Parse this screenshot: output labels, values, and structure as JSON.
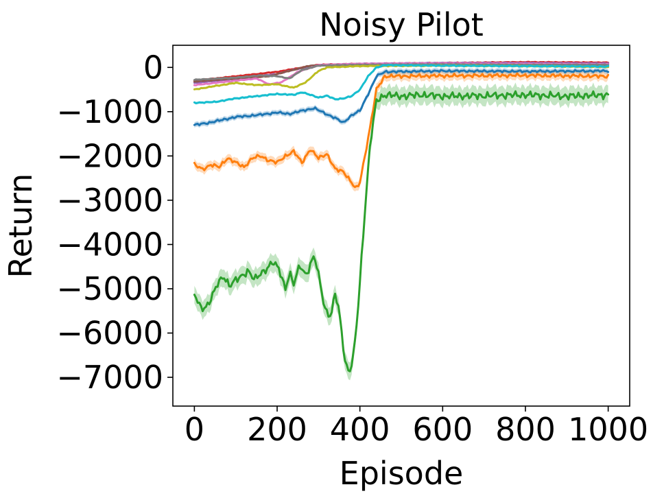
{
  "chart_data": {
    "type": "line",
    "title": "Noisy Pilot",
    "xlabel": "Episode",
    "ylabel": "Return",
    "xlim": [
      -52,
      1052
    ],
    "ylim": [
      -7650,
      500
    ],
    "xticks": [
      0,
      200,
      400,
      600,
      800,
      1000
    ],
    "xtick_labels": [
      "0",
      "200",
      "400",
      "600",
      "800",
      "1000"
    ],
    "yticks": [
      0,
      -1000,
      -2000,
      -3000,
      -4000,
      -5000,
      -6000,
      -7000
    ],
    "ytick_labels": [
      "0",
      "−1000",
      "−2000",
      "−3000",
      "−4000",
      "−5000",
      "−6000",
      "−7000"
    ],
    "grid": false,
    "legend": "none",
    "series": [
      {
        "color": "#1f77b4",
        "band": 60,
        "points": [
          [
            0,
            -1300
          ],
          [
            30,
            -1260
          ],
          [
            60,
            -1200
          ],
          [
            100,
            -1120
          ],
          [
            150,
            -1080
          ],
          [
            200,
            -1020
          ],
          [
            230,
            -1050
          ],
          [
            260,
            -980
          ],
          [
            290,
            -920
          ],
          [
            320,
            -1060
          ],
          [
            340,
            -1140
          ],
          [
            360,
            -1250
          ],
          [
            380,
            -1080
          ],
          [
            400,
            -980
          ],
          [
            420,
            -600
          ],
          [
            440,
            -200
          ],
          [
            460,
            -100
          ],
          [
            600,
            -80
          ],
          [
            800,
            -90
          ],
          [
            1000,
            -80
          ]
        ]
      },
      {
        "color": "#ff7f0e",
        "band": 100,
        "points": [
          [
            0,
            -2200
          ],
          [
            20,
            -2300
          ],
          [
            40,
            -2200
          ],
          [
            60,
            -2250
          ],
          [
            80,
            -2050
          ],
          [
            100,
            -2150
          ],
          [
            120,
            -2250
          ],
          [
            140,
            -2050
          ],
          [
            160,
            -2000
          ],
          [
            180,
            -2100
          ],
          [
            200,
            -2150
          ],
          [
            220,
            -2000
          ],
          [
            240,
            -1900
          ],
          [
            260,
            -2150
          ],
          [
            280,
            -1850
          ],
          [
            300,
            -2050
          ],
          [
            320,
            -1950
          ],
          [
            340,
            -2300
          ],
          [
            360,
            -2350
          ],
          [
            380,
            -2600
          ],
          [
            390,
            -2750
          ],
          [
            400,
            -2600
          ],
          [
            420,
            -1600
          ],
          [
            440,
            -500
          ],
          [
            460,
            -200
          ],
          [
            600,
            -190
          ],
          [
            800,
            -180
          ],
          [
            1000,
            -200
          ]
        ]
      },
      {
        "color": "#2ca02c",
        "band": 200,
        "points": [
          [
            0,
            -5100
          ],
          [
            10,
            -5350
          ],
          [
            25,
            -5450
          ],
          [
            40,
            -5250
          ],
          [
            55,
            -4900
          ],
          [
            70,
            -4700
          ],
          [
            85,
            -4950
          ],
          [
            100,
            -4800
          ],
          [
            115,
            -4700
          ],
          [
            130,
            -4600
          ],
          [
            145,
            -4800
          ],
          [
            160,
            -4650
          ],
          [
            175,
            -4550
          ],
          [
            190,
            -4400
          ],
          [
            205,
            -4550
          ],
          [
            220,
            -5000
          ],
          [
            230,
            -4650
          ],
          [
            240,
            -4900
          ],
          [
            255,
            -4450
          ],
          [
            270,
            -4700
          ],
          [
            290,
            -4250
          ],
          [
            305,
            -4900
          ],
          [
            315,
            -5450
          ],
          [
            330,
            -5650
          ],
          [
            340,
            -5100
          ],
          [
            350,
            -5500
          ],
          [
            365,
            -6700
          ],
          [
            375,
            -6900
          ],
          [
            385,
            -6500
          ],
          [
            395,
            -5500
          ],
          [
            410,
            -3500
          ],
          [
            425,
            -1700
          ],
          [
            440,
            -750
          ],
          [
            460,
            -620
          ],
          [
            500,
            -650
          ],
          [
            550,
            -620
          ],
          [
            600,
            -650
          ],
          [
            700,
            -640
          ],
          [
            800,
            -620
          ],
          [
            900,
            -650
          ],
          [
            1000,
            -620
          ]
        ]
      },
      {
        "color": "#d62728",
        "band": 20,
        "points": [
          [
            0,
            -300
          ],
          [
            100,
            -200
          ],
          [
            200,
            -100
          ],
          [
            300,
            60
          ],
          [
            400,
            80
          ],
          [
            600,
            100
          ],
          [
            800,
            120
          ],
          [
            1000,
            110
          ]
        ]
      },
      {
        "color": "#9467bd",
        "band": 20,
        "points": [
          [
            0,
            -350
          ],
          [
            100,
            -260
          ],
          [
            200,
            -150
          ],
          [
            240,
            -50
          ],
          [
            300,
            50
          ],
          [
            400,
            80
          ],
          [
            600,
            100
          ],
          [
            800,
            100
          ],
          [
            1000,
            90
          ]
        ]
      },
      {
        "color": "#8c564b",
        "band": 20,
        "points": [
          [
            0,
            -320
          ],
          [
            100,
            -250
          ],
          [
            180,
            -200
          ],
          [
            220,
            -100
          ],
          [
            280,
            40
          ],
          [
            400,
            60
          ],
          [
            600,
            80
          ],
          [
            800,
            70
          ],
          [
            1000,
            60
          ]
        ]
      },
      {
        "color": "#e377c2",
        "band": 20,
        "points": [
          [
            0,
            -400
          ],
          [
            100,
            -300
          ],
          [
            150,
            -250
          ],
          [
            180,
            -380
          ],
          [
            210,
            -340
          ],
          [
            250,
            -100
          ],
          [
            300,
            50
          ],
          [
            400,
            80
          ],
          [
            600,
            90
          ],
          [
            800,
            80
          ],
          [
            1000,
            70
          ]
        ]
      },
      {
        "color": "#7f7f7f",
        "band": 20,
        "points": [
          [
            0,
            -280
          ],
          [
            100,
            -230
          ],
          [
            160,
            -180
          ],
          [
            200,
            -200
          ],
          [
            230,
            -250
          ],
          [
            260,
            -60
          ],
          [
            300,
            40
          ],
          [
            400,
            60
          ],
          [
            600,
            70
          ],
          [
            800,
            60
          ],
          [
            1000,
            60
          ]
        ]
      },
      {
        "color": "#bcbd22",
        "band": 25,
        "points": [
          [
            0,
            -500
          ],
          [
            50,
            -420
          ],
          [
            100,
            -350
          ],
          [
            150,
            -400
          ],
          [
            200,
            -380
          ],
          [
            240,
            -460
          ],
          [
            270,
            -330
          ],
          [
            300,
            -80
          ],
          [
            320,
            0
          ],
          [
            400,
            30
          ],
          [
            600,
            40
          ],
          [
            800,
            30
          ],
          [
            1000,
            10
          ]
        ]
      },
      {
        "color": "#17becf",
        "band": 30,
        "points": [
          [
            0,
            -800
          ],
          [
            50,
            -780
          ],
          [
            100,
            -700
          ],
          [
            150,
            -650
          ],
          [
            200,
            -600
          ],
          [
            240,
            -620
          ],
          [
            260,
            -560
          ],
          [
            300,
            -680
          ],
          [
            320,
            -640
          ],
          [
            340,
            -720
          ],
          [
            360,
            -700
          ],
          [
            380,
            -650
          ],
          [
            400,
            -500
          ],
          [
            420,
            -200
          ],
          [
            440,
            0
          ],
          [
            460,
            50
          ],
          [
            600,
            40
          ],
          [
            800,
            30
          ],
          [
            1000,
            20
          ]
        ]
      }
    ]
  }
}
